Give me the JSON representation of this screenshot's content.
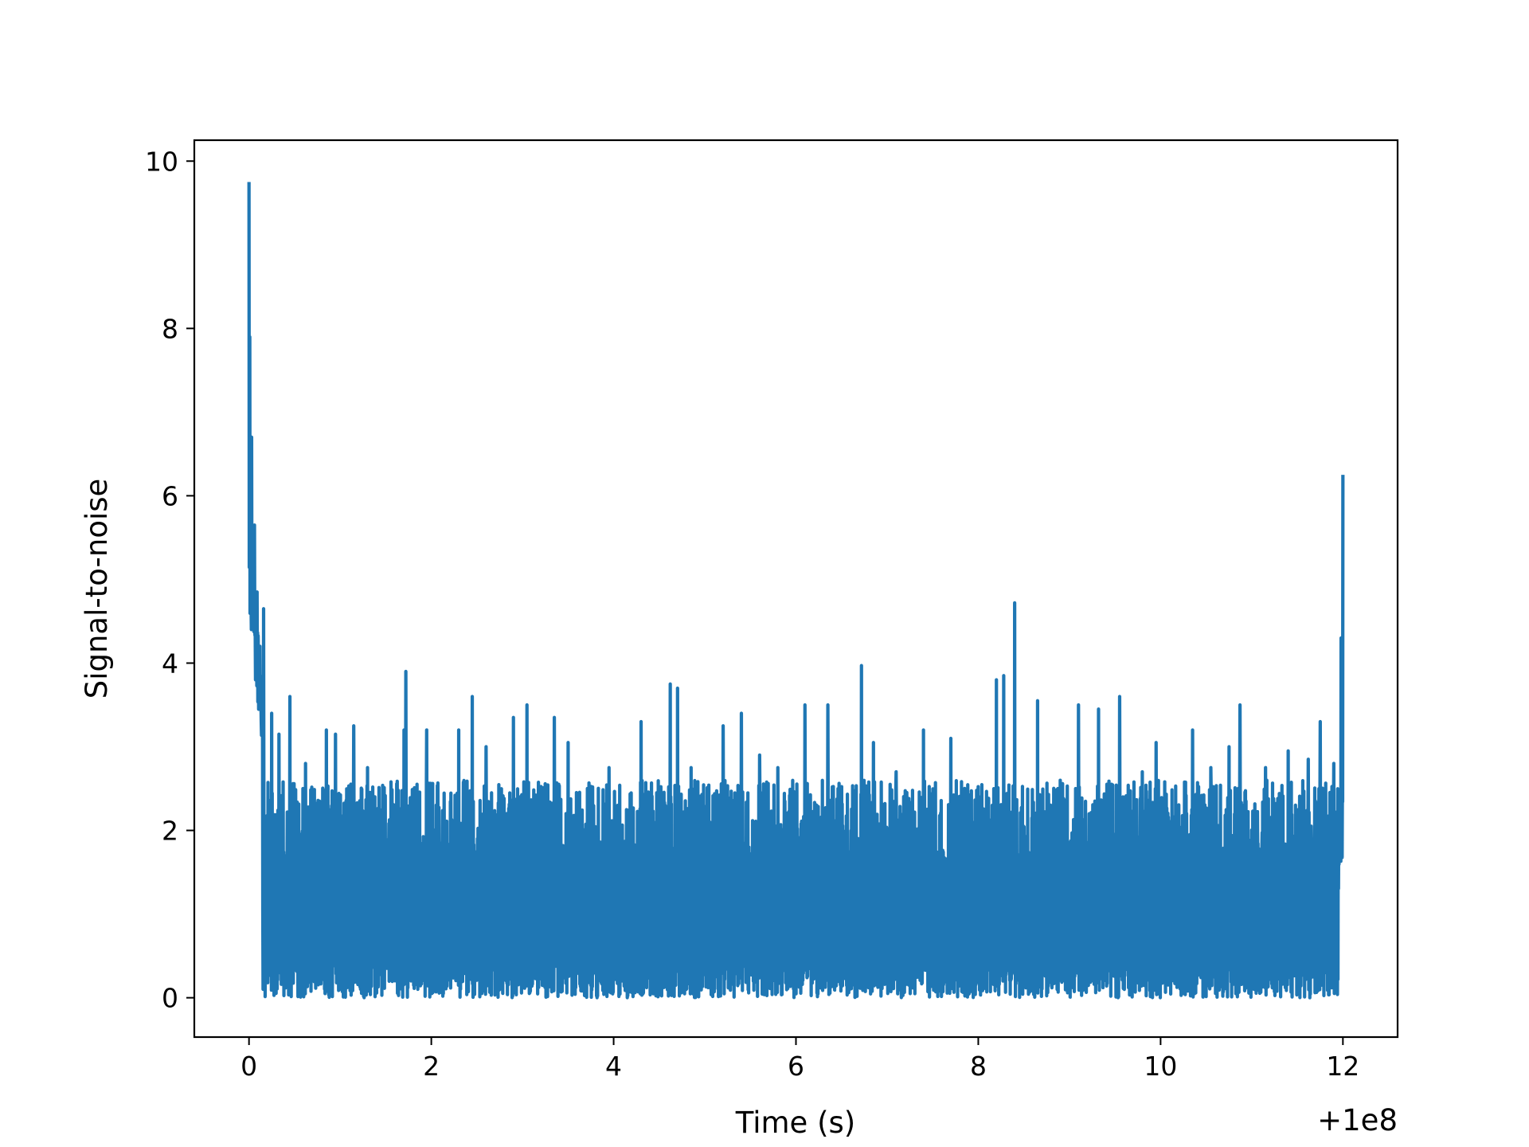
{
  "chart_data": {
    "type": "line",
    "xlabel": "Time (s)",
    "ylabel": "Signal-to-noise",
    "x_offset_label": "+1e8",
    "xlim": [
      -0.6,
      12.6
    ],
    "ylim": [
      -0.47,
      10.25
    ],
    "xticks": [
      0,
      2,
      4,
      6,
      8,
      10,
      12
    ],
    "yticks": [
      0,
      2,
      4,
      6,
      8,
      10
    ],
    "xtick_labels": [
      "0",
      "2",
      "4",
      "6",
      "8",
      "10",
      "12"
    ],
    "ytick_labels": [
      "0",
      "2",
      "4",
      "6",
      "8",
      "10"
    ],
    "grid": false,
    "series": [
      {
        "color": "#1f77b4",
        "noise_band": {
          "floor": [
            0.0,
            0.45
          ],
          "ceiling_typical": [
            1.5,
            2.6
          ],
          "mean": 1.2
        },
        "peaks": [
          {
            "x": 0.0,
            "y": 9.75
          },
          {
            "x": 0.01,
            "y": 7.9
          },
          {
            "x": 0.03,
            "y": 6.7
          },
          {
            "x": 0.06,
            "y": 5.65
          },
          {
            "x": 0.09,
            "y": 4.85
          },
          {
            "x": 0.12,
            "y": 4.2
          },
          {
            "x": 0.16,
            "y": 4.65
          },
          {
            "x": 0.25,
            "y": 3.4
          },
          {
            "x": 0.33,
            "y": 3.15
          },
          {
            "x": 0.45,
            "y": 3.6
          },
          {
            "x": 0.62,
            "y": 2.8
          },
          {
            "x": 0.85,
            "y": 3.2
          },
          {
            "x": 0.95,
            "y": 3.15
          },
          {
            "x": 1.15,
            "y": 3.25
          },
          {
            "x": 1.3,
            "y": 2.75
          },
          {
            "x": 1.7,
            "y": 3.2
          },
          {
            "x": 1.72,
            "y": 3.9
          },
          {
            "x": 1.95,
            "y": 3.2
          },
          {
            "x": 2.3,
            "y": 3.2
          },
          {
            "x": 2.45,
            "y": 3.6
          },
          {
            "x": 2.6,
            "y": 3.0
          },
          {
            "x": 2.9,
            "y": 3.35
          },
          {
            "x": 3.05,
            "y": 3.5
          },
          {
            "x": 3.35,
            "y": 3.35
          },
          {
            "x": 3.5,
            "y": 3.05
          },
          {
            "x": 3.95,
            "y": 2.75
          },
          {
            "x": 4.3,
            "y": 3.3
          },
          {
            "x": 4.62,
            "y": 3.75
          },
          {
            "x": 4.7,
            "y": 3.7
          },
          {
            "x": 4.85,
            "y": 2.75
          },
          {
            "x": 5.2,
            "y": 3.25
          },
          {
            "x": 5.4,
            "y": 3.4
          },
          {
            "x": 5.6,
            "y": 2.9
          },
          {
            "x": 5.8,
            "y": 2.75
          },
          {
            "x": 6.1,
            "y": 3.5
          },
          {
            "x": 6.35,
            "y": 3.5
          },
          {
            "x": 6.72,
            "y": 3.97
          },
          {
            "x": 6.85,
            "y": 3.05
          },
          {
            "x": 7.1,
            "y": 2.7
          },
          {
            "x": 7.4,
            "y": 3.2
          },
          {
            "x": 7.7,
            "y": 3.1
          },
          {
            "x": 8.2,
            "y": 3.8
          },
          {
            "x": 8.28,
            "y": 3.85
          },
          {
            "x": 8.4,
            "y": 4.72
          },
          {
            "x": 8.65,
            "y": 3.55
          },
          {
            "x": 8.9,
            "y": 2.6
          },
          {
            "x": 9.1,
            "y": 3.5
          },
          {
            "x": 9.32,
            "y": 3.45
          },
          {
            "x": 9.55,
            "y": 3.6
          },
          {
            "x": 9.8,
            "y": 2.7
          },
          {
            "x": 9.95,
            "y": 3.05
          },
          {
            "x": 10.35,
            "y": 3.2
          },
          {
            "x": 10.55,
            "y": 2.75
          },
          {
            "x": 10.75,
            "y": 3.0
          },
          {
            "x": 10.87,
            "y": 3.5
          },
          {
            "x": 11.15,
            "y": 2.75
          },
          {
            "x": 11.4,
            "y": 2.95
          },
          {
            "x": 11.62,
            "y": 2.85
          },
          {
            "x": 11.75,
            "y": 3.3
          },
          {
            "x": 11.9,
            "y": 2.8
          },
          {
            "x": 11.98,
            "y": 4.3
          },
          {
            "x": 12.0,
            "y": 6.25
          }
        ]
      }
    ]
  }
}
